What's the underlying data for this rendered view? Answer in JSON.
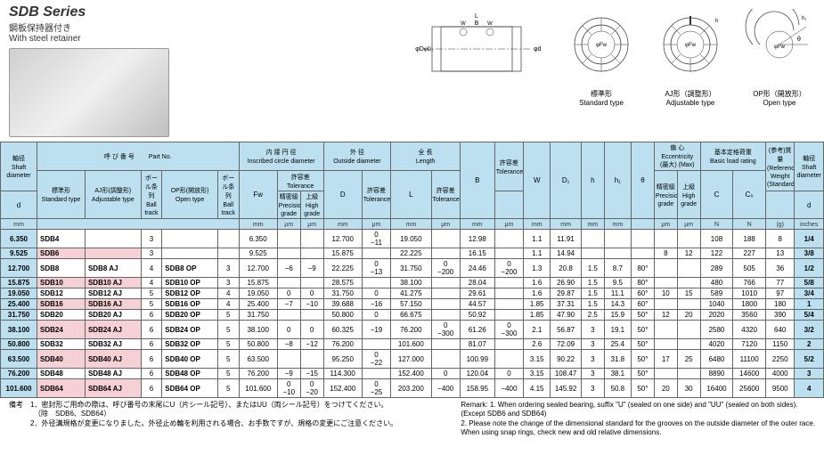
{
  "title": {
    "series": "SDB Series",
    "jp": "鋼板保持器付き",
    "en": "With steel retainer"
  },
  "diagram_labels": {
    "standard_jp": "標準形",
    "standard_en": "Standard type",
    "aj_jp": "AJ形（調整形）",
    "aj_en": "Adjustable type",
    "op_jp": "OP形（開放形）",
    "op_en": "Open type"
  },
  "headers": {
    "shaft_jp": "軸径",
    "shaft_en": "Shaft diameter",
    "shaft_sym": "d",
    "shaft_unit": "mm",
    "partno_jp": "呼 び 番 号",
    "partno_en": "Part No.",
    "std_jp": "標準形",
    "std_en": "Standard type",
    "aj_jp": "AJ形(調整形)",
    "aj_en": "Adjustable type",
    "ball1_jp": "ボール条列",
    "ball1_en": "Ball track",
    "op_jp": "OP形(開放形)",
    "op_en": "Open type",
    "ball2_jp": "ボール条列",
    "ball2_en": "Ball track",
    "inscr_jp": "内 接 円 径",
    "inscr_en": "Inscribed circle diameter",
    "fw_sym": "Fw",
    "tol_jp": "許容差",
    "tol_en": "Tolerance",
    "prec_jp": "精密級",
    "prec_en": "Precision grade",
    "high_jp": "上級",
    "high_en": "High grade",
    "od_jp": "外  径",
    "od_en": "Outside diameter",
    "d_sym": "D",
    "len_jp": "全  長",
    "len_en": "Length",
    "l_sym": "L",
    "b_sym": "B",
    "w_sym": "W",
    "d1_sym": "D₁",
    "h_sym": "h",
    "h1_sym": "h₁",
    "theta_sym": "θ",
    "ecc_jp": "偏   心",
    "ecc_en": "Eccentricity",
    "ecc_max_jp": "(最大) (Max)",
    "load_jp": "基本定格荷重",
    "load_en": "Basic load rating",
    "c_sym": "C",
    "c0_sym": "C₀",
    "wt_jp": "(参考)質量",
    "wt_en": "(Reference) Weight (Standard)",
    "inch_sym": "d",
    "inch_unit": "inches",
    "mm": "mm",
    "um": "μm",
    "n": "N",
    "g": "(g)"
  },
  "rows": [
    {
      "d": "6.350",
      "std": "SDB4",
      "aj": "",
      "b1": "3",
      "op": "",
      "b2": "",
      "fw": "6.350",
      "tp": "",
      "th": "",
      "od": "12.700",
      "odt": "0\n−11",
      "l": "19.050",
      "lt": "",
      "b": "12.98",
      "bt": "",
      "w": "1.1",
      "d1": "11.91",
      "h": "",
      "h1": "",
      "th2": "",
      "ep": "",
      "eh": "",
      "c": "108",
      "c0": "188",
      "wt": "8",
      "in": "1/4",
      "pink": false
    },
    {
      "d": "9.525",
      "std": "SDB6",
      "aj": "",
      "b1": "3",
      "op": "",
      "b2": "",
      "fw": "9.525",
      "tp": "",
      "th": "",
      "od": "15.875",
      "odt": "",
      "l": "22.225",
      "lt": "",
      "b": "16.15",
      "bt": "",
      "w": "1.1",
      "d1": "14.94",
      "h": "",
      "h1": "",
      "th2": "",
      "ep": "8",
      "eh": "12",
      "c": "122",
      "c0": "227",
      "wt": "13",
      "in": "3/8",
      "pink": true
    },
    {
      "d": "12.700",
      "std": "SDB8",
      "aj": "SDB8   AJ",
      "b1": "4",
      "op": "SDB8   OP",
      "b2": "3",
      "fw": "12.700",
      "tp": "−6",
      "th": "−9",
      "od": "22.225",
      "odt": "0\n−13",
      "l": "31.750",
      "lt": "0\n−200",
      "b": "24.46",
      "bt": "0\n−200",
      "w": "1.3",
      "d1": "20.8",
      "h": "1.5",
      "h1": "8.7",
      "th2": "80°",
      "ep": "",
      "eh": "",
      "c": "289",
      "c0": "505",
      "wt": "36",
      "in": "1/2",
      "pink": false
    },
    {
      "d": "15.875",
      "std": "SDB10",
      "aj": "SDB10 AJ",
      "b1": "4",
      "op": "SDB10 OP",
      "b2": "3",
      "fw": "15.875",
      "tp": "",
      "th": "",
      "od": "28.575",
      "odt": "",
      "l": "38.100",
      "lt": "",
      "b": "28.04",
      "bt": "",
      "w": "1.6",
      "d1": "26.90",
      "h": "1.5",
      "h1": "9.5",
      "th2": "80°",
      "ep": "",
      "eh": "",
      "c": "480",
      "c0": "766",
      "wt": "77",
      "in": "5/8",
      "pink": true
    },
    {
      "d": "19.050",
      "std": "SDB12",
      "aj": "SDB12 AJ",
      "b1": "5",
      "op": "SDB12 OP",
      "b2": "4",
      "fw": "19.050",
      "tp": "0",
      "th": "0",
      "od": "31.750",
      "odt": "0",
      "l": "41.275",
      "lt": "",
      "b": "29.61",
      "bt": "",
      "w": "1.6",
      "d1": "29.87",
      "h": "1.5",
      "h1": "11.1",
      "th2": "60°",
      "ep": "10",
      "eh": "15",
      "c": "589",
      "c0": "1010",
      "wt": "97",
      "in": "3/4",
      "pink": false
    },
    {
      "d": "25.400",
      "std": "SDB16",
      "aj": "SDB16 AJ",
      "b1": "5",
      "op": "SDB16 OP",
      "b2": "4",
      "fw": "25.400",
      "tp": "−7",
      "th": "−10",
      "od": "39.688",
      "odt": "−16",
      "l": "57.150",
      "lt": "",
      "b": "44.57",
      "bt": "",
      "w": "1.85",
      "d1": "37.31",
      "h": "1.5",
      "h1": "14.3",
      "th2": "60°",
      "ep": "",
      "eh": "",
      "c": "1040",
      "c0": "1800",
      "wt": "180",
      "in": "1",
      "pink": true
    },
    {
      "d": "31.750",
      "std": "SDB20",
      "aj": "SDB20 AJ",
      "b1": "6",
      "op": "SDB20 OP",
      "b2": "5",
      "fw": "31.750",
      "tp": "",
      "th": "",
      "od": "50.800",
      "odt": "0",
      "l": "66.675",
      "lt": "",
      "b": "50.92",
      "bt": "",
      "w": "1.85",
      "d1": "47.90",
      "h": "2.5",
      "h1": "15.9",
      "th2": "50°",
      "ep": "12",
      "eh": "20",
      "c": "2020",
      "c0": "3560",
      "wt": "390",
      "in": "5/4",
      "pink": false
    },
    {
      "d": "38.100",
      "std": "SDB24",
      "aj": "SDB24 AJ",
      "b1": "6",
      "op": "SDB24 OP",
      "b2": "5",
      "fw": "38.100",
      "tp": "0",
      "th": "0",
      "od": "60.325",
      "odt": "−19",
      "l": "76.200",
      "lt": "0\n−300",
      "b": "61.26",
      "bt": "0\n−300",
      "w": "2.1",
      "d1": "56.87",
      "h": "3",
      "h1": "19.1",
      "th2": "50°",
      "ep": "",
      "eh": "",
      "c": "2580",
      "c0": "4320",
      "wt": "640",
      "in": "3/2",
      "pink": true
    },
    {
      "d": "50.800",
      "std": "SDB32",
      "aj": "SDB32 AJ",
      "b1": "6",
      "op": "SDB32 OP",
      "b2": "5",
      "fw": "50.800",
      "tp": "−8",
      "th": "−12",
      "od": "76.200",
      "odt": "",
      "l": "101.600",
      "lt": "",
      "b": "81.07",
      "bt": "",
      "w": "2.6",
      "d1": "72.09",
      "h": "3",
      "h1": "25.4",
      "th2": "50°",
      "ep": "",
      "eh": "",
      "c": "4020",
      "c0": "7120",
      "wt": "1150",
      "in": "2",
      "pink": false
    },
    {
      "d": "63.500",
      "std": "SDB40",
      "aj": "SDB40 AJ",
      "b1": "6",
      "op": "SDB40 OP",
      "b2": "5",
      "fw": "63.500",
      "tp": "",
      "th": "",
      "od": "95.250",
      "odt": "0\n−22",
      "l": "127.000",
      "lt": "",
      "b": "100.99",
      "bt": "",
      "w": "3.15",
      "d1": "90.22",
      "h": "3",
      "h1": "31.8",
      "th2": "50°",
      "ep": "17",
      "eh": "25",
      "c": "6480",
      "c0": "11100",
      "wt": "2250",
      "in": "5/2",
      "pink": true
    },
    {
      "d": "76.200",
      "std": "SDB48",
      "aj": "SDB48 AJ",
      "b1": "6",
      "op": "SDB48 OP",
      "b2": "5",
      "fw": "76.200",
      "tp": "−9",
      "th": "−15",
      "od": "114.300",
      "odt": "",
      "l": "152.400",
      "lt": "0",
      "b": "120.04",
      "bt": "0",
      "w": "3.15",
      "d1": "108.47",
      "h": "3",
      "h1": "38.1",
      "th2": "50°",
      "ep": "",
      "eh": "",
      "c": "8890",
      "c0": "14600",
      "wt": "4000",
      "in": "3",
      "pink": false
    },
    {
      "d": "101.600",
      "std": "SDB64",
      "aj": "SDB64 AJ",
      "b1": "6",
      "op": "SDB64 OP",
      "b2": "5",
      "fw": "101.600",
      "tp": "0\n−10",
      "th": "0\n−20",
      "od": "152.400",
      "odt": "0\n−25",
      "l": "203.200",
      "lt": "−400",
      "b": "158.95",
      "bt": "−400",
      "w": "4.15",
      "d1": "145.92",
      "h": "3",
      "h1": "50.8",
      "th2": "50°",
      "ep": "20",
      "eh": "30",
      "c": "16400",
      "c0": "25600",
      "wt": "9500",
      "in": "4",
      "pink": true
    }
  ],
  "footnotes": {
    "left1": "備考　1．密封形ご用命の際は、呼び番号の末尾にU（片シール記号）、またはUU（両シール記号）をつけてください。",
    "left2": "　　　　（除　SDB6、SDB64）",
    "left3": "　　　2．外径溝規格が変更になりました。外径止め輪を利用される場合、お手数ですが、規格の変更にご注意ください。",
    "right1": "Remark: 1.  When ordering sealed bearing, suffix \"U\" (sealed on one side) and \"UU\" (sealed on both sides).",
    "right2": "(Except SDB6 and SDB64)",
    "right3": "2.  Please note the change of the dimensional standard for the grooves on the outside diameter of the outer race.",
    "right4": "When using snap rings, check new and old relative dimensions."
  }
}
